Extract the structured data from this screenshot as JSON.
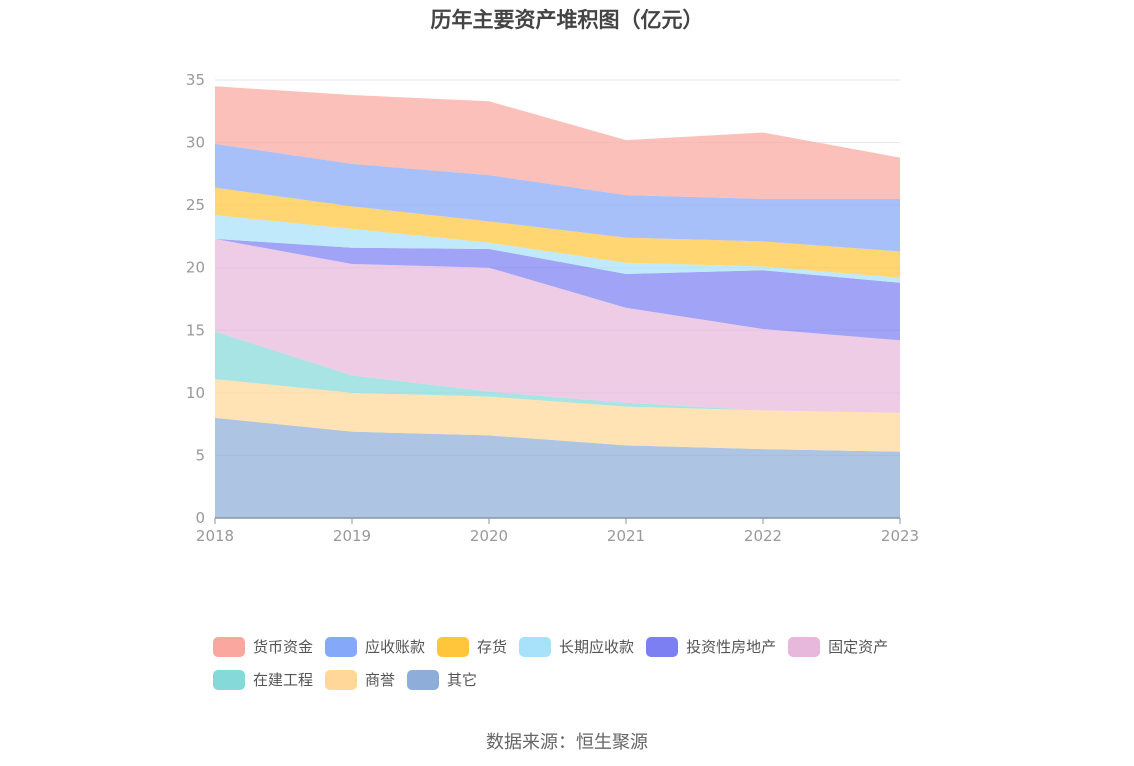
{
  "title": "历年主要资产堆积图（亿元）",
  "source": "数据来源：恒生聚源",
  "chart_data": {
    "type": "area",
    "stacked": true,
    "categories": [
      "2018",
      "2019",
      "2020",
      "2021",
      "2022",
      "2023"
    ],
    "ylim": [
      0,
      35
    ],
    "yticks": [
      0,
      5,
      10,
      15,
      20,
      25,
      30,
      35
    ],
    "grid": true,
    "legend_position": "bottom",
    "series": [
      {
        "name": "其它",
        "color": "#8eadd8",
        "values": [
          8.0,
          6.9,
          6.6,
          5.8,
          5.5,
          5.3
        ]
      },
      {
        "name": "商誉",
        "color": "#ffd899",
        "values": [
          3.1,
          3.1,
          3.1,
          3.1,
          3.1,
          3.1
        ]
      },
      {
        "name": "在建工程",
        "color": "#86d9d9",
        "values": [
          3.8,
          1.4,
          0.4,
          0.3,
          0.0,
          0.0
        ]
      },
      {
        "name": "固定资产",
        "color": "#e8b8dc",
        "values": [
          7.4,
          8.9,
          9.9,
          7.6,
          6.5,
          5.8
        ]
      },
      {
        "name": "投资性房地产",
        "color": "#7c7ff2",
        "values": [
          0.0,
          1.3,
          1.5,
          2.7,
          4.7,
          4.6
        ]
      },
      {
        "name": "长期应收款",
        "color": "#a8e2fa",
        "values": [
          1.9,
          1.5,
          0.5,
          0.9,
          0.3,
          0.4
        ]
      },
      {
        "name": "存货",
        "color": "#ffc63c",
        "values": [
          2.2,
          1.8,
          1.7,
          2.0,
          2.0,
          2.1
        ]
      },
      {
        "name": "应收账款",
        "color": "#86a8f8",
        "values": [
          3.5,
          3.4,
          3.7,
          3.4,
          3.4,
          4.2
        ]
      },
      {
        "name": "货币资金",
        "color": "#f9a79f",
        "values": [
          4.6,
          5.5,
          5.9,
          4.4,
          5.3,
          3.3
        ]
      }
    ]
  }
}
